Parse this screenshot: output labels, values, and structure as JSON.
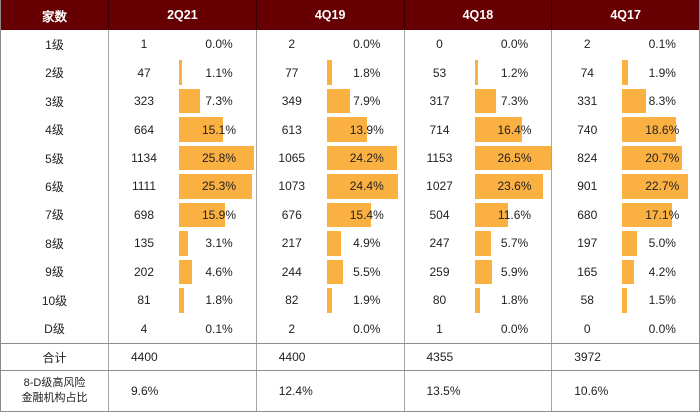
{
  "colors": {
    "header_bg": "#670002",
    "bar": "#FBB042"
  },
  "table": {
    "corner_label": "家数",
    "quarters": [
      "2Q21",
      "4Q19",
      "4Q18",
      "4Q17"
    ],
    "rows": [
      {
        "label": "1级",
        "cells": [
          {
            "count": "1",
            "pct": "0.0%",
            "pct_value": 0.0
          },
          {
            "count": "2",
            "pct": "0.0%",
            "pct_value": 0.0
          },
          {
            "count": "0",
            "pct": "0.0%",
            "pct_value": 0.0
          },
          {
            "count": "2",
            "pct": "0.1%",
            "pct_value": 0.1
          }
        ]
      },
      {
        "label": "2级",
        "cells": [
          {
            "count": "47",
            "pct": "1.1%",
            "pct_value": 1.1
          },
          {
            "count": "77",
            "pct": "1.8%",
            "pct_value": 1.8
          },
          {
            "count": "53",
            "pct": "1.2%",
            "pct_value": 1.2
          },
          {
            "count": "74",
            "pct": "1.9%",
            "pct_value": 1.9
          }
        ]
      },
      {
        "label": "3级",
        "cells": [
          {
            "count": "323",
            "pct": "7.3%",
            "pct_value": 7.3
          },
          {
            "count": "349",
            "pct": "7.9%",
            "pct_value": 7.9
          },
          {
            "count": "317",
            "pct": "7.3%",
            "pct_value": 7.3
          },
          {
            "count": "331",
            "pct": "8.3%",
            "pct_value": 8.3
          }
        ]
      },
      {
        "label": "4级",
        "cells": [
          {
            "count": "664",
            "pct": "15.1%",
            "pct_value": 15.1
          },
          {
            "count": "613",
            "pct": "13.9%",
            "pct_value": 13.9
          },
          {
            "count": "714",
            "pct": "16.4%",
            "pct_value": 16.4
          },
          {
            "count": "740",
            "pct": "18.6%",
            "pct_value": 18.6
          }
        ]
      },
      {
        "label": "5级",
        "cells": [
          {
            "count": "1134",
            "pct": "25.8%",
            "pct_value": 25.8
          },
          {
            "count": "1065",
            "pct": "24.2%",
            "pct_value": 24.2
          },
          {
            "count": "1153",
            "pct": "26.5%",
            "pct_value": 26.5
          },
          {
            "count": "824",
            "pct": "20.7%",
            "pct_value": 20.7
          }
        ]
      },
      {
        "label": "6级",
        "cells": [
          {
            "count": "1111",
            "pct": "25.3%",
            "pct_value": 25.3
          },
          {
            "count": "1073",
            "pct": "24.4%",
            "pct_value": 24.4
          },
          {
            "count": "1027",
            "pct": "23.6%",
            "pct_value": 23.6
          },
          {
            "count": "901",
            "pct": "22.7%",
            "pct_value": 22.7
          }
        ]
      },
      {
        "label": "7级",
        "cells": [
          {
            "count": "698",
            "pct": "15.9%",
            "pct_value": 15.9
          },
          {
            "count": "676",
            "pct": "15.4%",
            "pct_value": 15.4
          },
          {
            "count": "504",
            "pct": "11.6%",
            "pct_value": 11.6
          },
          {
            "count": "680",
            "pct": "17.1%",
            "pct_value": 17.1
          }
        ]
      },
      {
        "label": "8级",
        "cells": [
          {
            "count": "135",
            "pct": "3.1%",
            "pct_value": 3.1
          },
          {
            "count": "217",
            "pct": "4.9%",
            "pct_value": 4.9
          },
          {
            "count": "247",
            "pct": "5.7%",
            "pct_value": 5.7
          },
          {
            "count": "197",
            "pct": "5.0%",
            "pct_value": 5.0
          }
        ]
      },
      {
        "label": "9级",
        "cells": [
          {
            "count": "202",
            "pct": "4.6%",
            "pct_value": 4.6
          },
          {
            "count": "244",
            "pct": "5.5%",
            "pct_value": 5.5
          },
          {
            "count": "259",
            "pct": "5.9%",
            "pct_value": 5.9
          },
          {
            "count": "165",
            "pct": "4.2%",
            "pct_value": 4.2
          }
        ]
      },
      {
        "label": "10级",
        "cells": [
          {
            "count": "81",
            "pct": "1.8%",
            "pct_value": 1.8
          },
          {
            "count": "82",
            "pct": "1.9%",
            "pct_value": 1.9
          },
          {
            "count": "80",
            "pct": "1.8%",
            "pct_value": 1.8
          },
          {
            "count": "58",
            "pct": "1.5%",
            "pct_value": 1.5
          }
        ]
      },
      {
        "label": "D级",
        "cells": [
          {
            "count": "4",
            "pct": "0.1%",
            "pct_value": 0.1
          },
          {
            "count": "2",
            "pct": "0.0%",
            "pct_value": 0.0
          },
          {
            "count": "1",
            "pct": "0.0%",
            "pct_value": 0.0
          },
          {
            "count": "0",
            "pct": "0.0%",
            "pct_value": 0.0
          }
        ]
      }
    ],
    "total_label": "合计",
    "totals": [
      "4400",
      "4400",
      "4355",
      "3972"
    ],
    "ratio_label_line1": "8-D级高风险",
    "ratio_label_line2": "金融机构占比",
    "ratios": [
      "9.6%",
      "12.4%",
      "13.5%",
      "10.6%"
    ]
  },
  "chart_data": {
    "type": "table",
    "title": "",
    "description": "Risk rating distribution of financial institutions by level, with horizontal bars showing percentage share per quarter",
    "categories": [
      "1级",
      "2级",
      "3级",
      "4级",
      "5级",
      "6级",
      "7级",
      "8级",
      "9级",
      "10级",
      "D级"
    ],
    "series": [
      {
        "name": "2Q21",
        "counts": [
          1,
          47,
          323,
          664,
          1134,
          1111,
          698,
          135,
          202,
          81,
          4
        ],
        "percentages": [
          0.0,
          1.1,
          7.3,
          15.1,
          25.8,
          25.3,
          15.9,
          3.1,
          4.6,
          1.8,
          0.1
        ]
      },
      {
        "name": "4Q19",
        "counts": [
          2,
          77,
          349,
          613,
          1065,
          1073,
          676,
          217,
          244,
          82,
          2
        ],
        "percentages": [
          0.0,
          1.8,
          7.9,
          13.9,
          24.2,
          24.4,
          15.4,
          4.9,
          5.5,
          1.9,
          0.0
        ]
      },
      {
        "name": "4Q18",
        "counts": [
          0,
          53,
          317,
          714,
          1153,
          1027,
          504,
          247,
          259,
          80,
          1
        ],
        "percentages": [
          0.0,
          1.2,
          7.3,
          16.4,
          26.5,
          23.6,
          11.6,
          5.7,
          5.9,
          1.8,
          0.0
        ]
      },
      {
        "name": "4Q17",
        "counts": [
          2,
          74,
          331,
          740,
          824,
          901,
          680,
          197,
          165,
          58,
          0
        ],
        "percentages": [
          0.1,
          1.9,
          8.3,
          18.6,
          20.7,
          22.7,
          17.1,
          5.0,
          4.2,
          1.5,
          0.0
        ]
      }
    ],
    "totals": {
      "2Q21": 4400,
      "4Q19": 4400,
      "4Q18": 4355,
      "4Q17": 3972
    },
    "high_risk_ratio_label": "8-D级高风险金融机构占比",
    "high_risk_ratios": {
      "2Q21": "9.6%",
      "4Q19": "12.4%",
      "4Q18": "13.5%",
      "4Q17": "10.6%"
    },
    "bar_color": "#FBB042",
    "bar_scale_note": "bar width proportional to percentage, max ~26.5%"
  }
}
